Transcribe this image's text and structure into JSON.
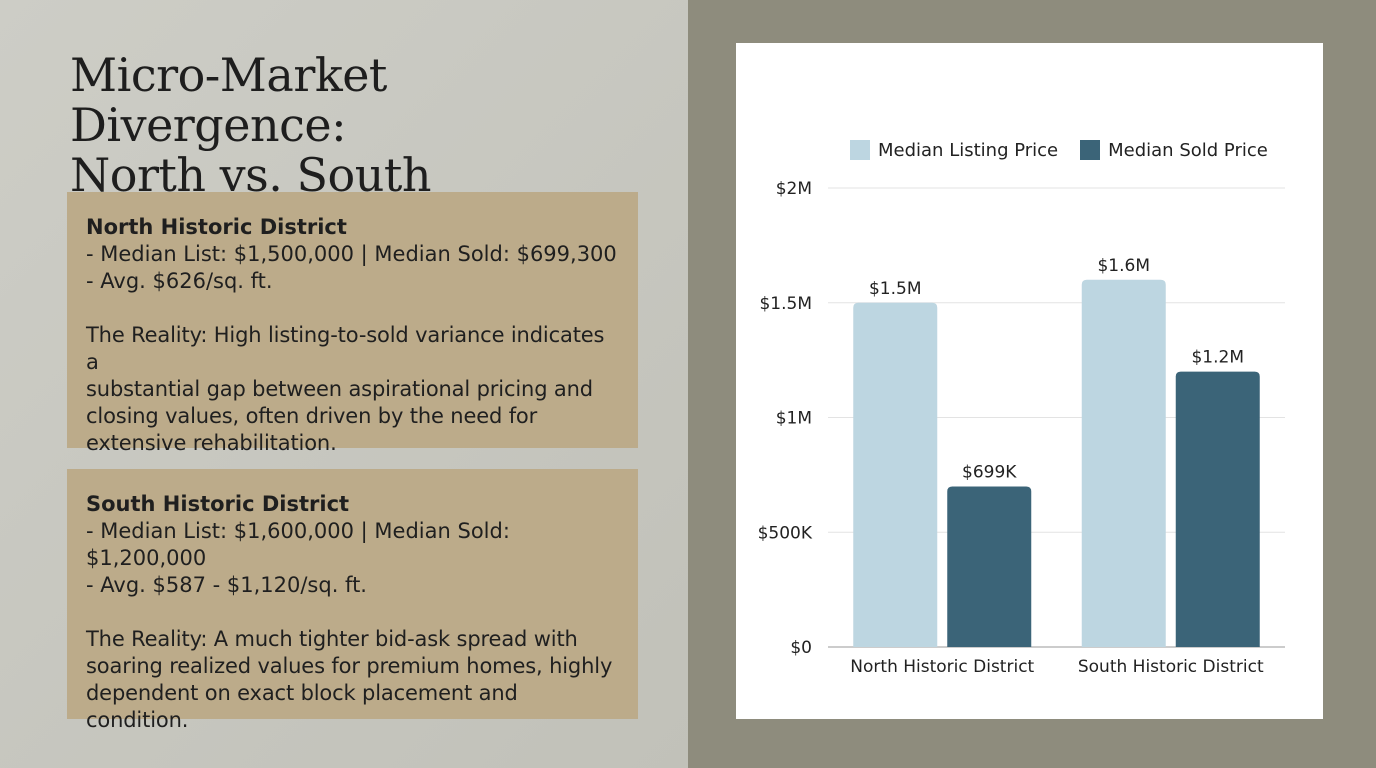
{
  "slide": {
    "title_line1": "Micro-Market Divergence:",
    "title_line2": "North vs. South"
  },
  "north": {
    "heading": "North Historic District",
    "line1": "- Median List: $1,500,000 | Median Sold: $699,300",
    "line2": "- Avg. $626/sq. ft.",
    "reality_lines": [
      "The Reality: High listing-to-sold variance indicates a",
      "substantial gap between aspirational pricing and",
      "closing values, often driven by the need for",
      "extensive rehabilitation."
    ]
  },
  "south": {
    "heading": "South Historic District",
    "line1": "- Median List: $1,600,000 | Median Sold: $1,200,000",
    "line2": "- Avg. $587 - $1,120/sq. ft.",
    "reality_lines": [
      "The Reality: A much tighter bid-ask spread with",
      "soaring realized values for premium homes, highly",
      "dependent on exact block placement and",
      "condition."
    ]
  },
  "chart_data": {
    "type": "bar",
    "categories": [
      "North Historic District",
      "South Historic District"
    ],
    "series": [
      {
        "name": "Median Listing Price",
        "values": [
          1500000,
          1600000
        ],
        "labels": [
          "$1.5M",
          "$1.6M"
        ],
        "color": "#bdd6e1"
      },
      {
        "name": "Median Sold Price",
        "values": [
          699300,
          1200000
        ],
        "labels": [
          "$699K",
          "$1.2M"
        ],
        "color": "#3b6478"
      }
    ],
    "ylim": [
      0,
      2000000
    ],
    "yticks": [
      {
        "value": 0,
        "label": "$0"
      },
      {
        "value": 500000,
        "label": "$500K"
      },
      {
        "value": 1000000,
        "label": "$1M"
      },
      {
        "value": 1500000,
        "label": "$1.5M"
      },
      {
        "value": 2000000,
        "label": "$2M"
      }
    ],
    "grid": true,
    "legend": "top"
  }
}
